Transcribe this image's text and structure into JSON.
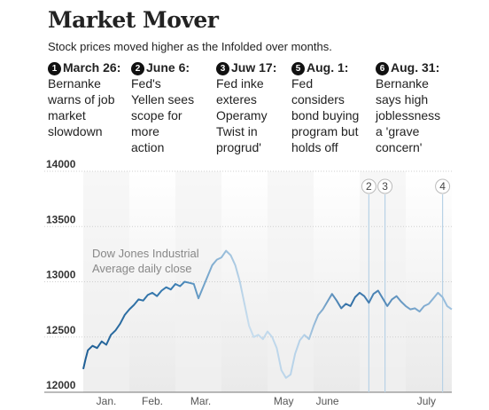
{
  "header": {
    "title": "Market Mover",
    "subtitle": "Stock prices moved higher as the Infolded over months."
  },
  "events": [
    {
      "num": "1",
      "date": "March 26:",
      "text": "Bernanke\nwarns of job\nmarket\nslowdown"
    },
    {
      "num": "2",
      "date": "June 6:",
      "text": "Fed's\nYellen sees\nscope for\nmore\naction"
    },
    {
      "num": "3",
      "date": "Juw 17:",
      "text": "Fed  inke\nexteres\nOperamy\nTwist in\nprogrud'"
    },
    {
      "num": "5",
      "date": "Aug. 1:",
      "text": "Fed\nconsiders\nbond buying\nprogram but\nholds off"
    },
    {
      "num": "6",
      "date": "Aug. 31:",
      "text": "Bernanke\nsays high\njoblessness\na 'grave\nconcern'"
    }
  ],
  "chart_data": {
    "type": "line",
    "annotation": "Dow Jones Industrial\nAverage daily close",
    "ylim": [
      12000,
      14000
    ],
    "yticks": [
      "14000",
      "13500",
      "13000",
      "12500",
      "12000"
    ],
    "xlabels": [
      "Jan.",
      "Feb.",
      "Mar.",
      "May",
      "June",
      "July"
    ],
    "markers": [
      {
        "label": "2",
        "month": 6.2
      },
      {
        "label": "3",
        "month": 6.55
      },
      {
        "label": "4",
        "month": 7.8
      }
    ],
    "series": [
      {
        "x": [
          0.0,
          0.05,
          0.1,
          0.2,
          0.3,
          0.4,
          0.5,
          0.6,
          0.7,
          0.8,
          0.9,
          1.0,
          1.1,
          1.2,
          1.3,
          1.4,
          1.5,
          1.6,
          1.7,
          1.8,
          1.9,
          2.0,
          2.1,
          2.2,
          2.3,
          2.4,
          2.5,
          2.6,
          2.7,
          2.8,
          2.9,
          3.0,
          3.1,
          3.2,
          3.3,
          3.4,
          3.5,
          3.6,
          3.7,
          3.8,
          3.9,
          4.0,
          4.1,
          4.2,
          4.3,
          4.4,
          4.5,
          4.6,
          4.7,
          4.8,
          4.9,
          5.0,
          5.1,
          5.2,
          5.3,
          5.4,
          5.5,
          5.6,
          5.7,
          5.8,
          5.9,
          6.0,
          6.1,
          6.2,
          6.3,
          6.4,
          6.5,
          6.6,
          6.7,
          6.8,
          6.9,
          7.0,
          7.1,
          7.2,
          7.3,
          7.4,
          7.5,
          7.6,
          7.7,
          7.8,
          7.9,
          8.0
        ],
        "values": [
          12210,
          12300,
          12380,
          12420,
          12400,
          12460,
          12430,
          12520,
          12560,
          12620,
          12700,
          12750,
          12790,
          12840,
          12830,
          12880,
          12900,
          12870,
          12920,
          12950,
          12930,
          12980,
          12960,
          13000,
          12990,
          12980,
          12850,
          12950,
          13050,
          13150,
          13200,
          13220,
          13280,
          13240,
          13150,
          13000,
          12800,
          12600,
          12500,
          12520,
          12480,
          12550,
          12500,
          12400,
          12200,
          12130,
          12160,
          12350,
          12470,
          12520,
          12480,
          12600,
          12700,
          12750,
          12820,
          12890,
          12830,
          12760,
          12800,
          12780,
          12860,
          12900,
          12870,
          12810,
          12890,
          12920,
          12850,
          12780,
          12840,
          12870,
          12820,
          12780,
          12750,
          12760,
          12730,
          12780,
          12800,
          12850,
          12900,
          12860,
          12780,
          12750
        ]
      }
    ]
  }
}
